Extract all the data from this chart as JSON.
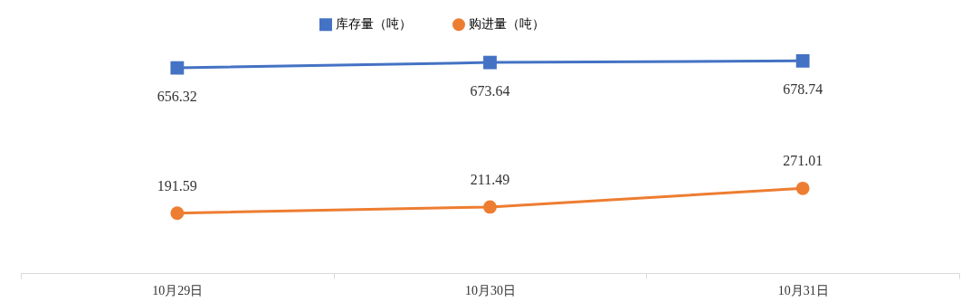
{
  "chart_data": {
    "type": "line",
    "categories": [
      "10月29日",
      "10月30日",
      "10月31日"
    ],
    "series": [
      {
        "name": "库存量（吨）",
        "color": "#4472c4",
        "marker": "square",
        "values": [
          656.32,
          673.64,
          678.74
        ]
      },
      {
        "name": "购进量（吨）",
        "color": "#ed7d31",
        "marker": "circle",
        "values": [
          191.59,
          211.49,
          271.01
        ]
      }
    ],
    "data_labels": true,
    "legend": "top",
    "grid": false
  }
}
